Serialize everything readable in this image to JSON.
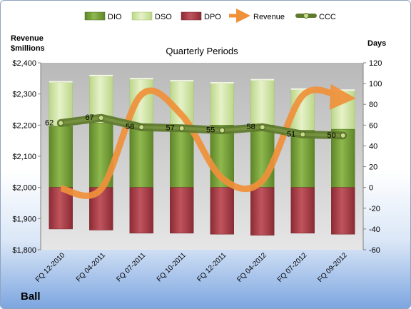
{
  "chart_data": {
    "type": "bar",
    "subtitle": "Quarterly Periods",
    "company": "Ball",
    "left_axis": {
      "label_line1": "Revenue",
      "label_line2": "$millions",
      "min": 1800,
      "max": 2400,
      "step": 100,
      "ticks": [
        "$1,800",
        "$1,900",
        "$2,000",
        "$2,100",
        "$2,200",
        "$2,300",
        "$2,400"
      ]
    },
    "right_axis": {
      "label": "Days",
      "min": -60,
      "max": 120,
      "step": 20,
      "ticks": [
        "-60",
        "-40",
        "-20",
        "0",
        "20",
        "40",
        "60",
        "80",
        "100",
        "120"
      ]
    },
    "categories": [
      "FQ 12-2010",
      "FQ 04-2011",
      "FQ 07-2011",
      "FQ 10-2011",
      "FQ 12-2011",
      "FQ 04-2012",
      "FQ 07-2012",
      "FQ 09-2012"
    ],
    "series": [
      {
        "name": "DIO",
        "axis": "right",
        "kind": "stacked-bar",
        "color": "#7a9e3a",
        "values": [
          59,
          62,
          61,
          60,
          60,
          60,
          55,
          56
        ]
      },
      {
        "name": "DSO",
        "axis": "right",
        "kind": "stacked-bar",
        "color": "#d4e6a8",
        "values": [
          42,
          45,
          43,
          42,
          40,
          43,
          39,
          37
        ]
      },
      {
        "name": "DPO",
        "axis": "right",
        "kind": "bar-negative",
        "color": "#a63d46",
        "values": [
          -40,
          -41,
          -44,
          -44,
          -45,
          -46,
          -44,
          -45
        ]
      },
      {
        "name": "Revenue",
        "axis": "left",
        "kind": "smooth-arrow-line",
        "color": "#f0913a",
        "values": [
          1997,
          1995,
          2298,
          2232,
          2030,
          2022,
          2295,
          2288
        ]
      },
      {
        "name": "CCC",
        "axis": "right",
        "kind": "line-markers",
        "color": "#5f7a2e",
        "values": [
          62,
          67,
          58,
          57,
          55,
          58,
          51,
          50
        ],
        "labels": [
          "62",
          "67",
          "58",
          "57",
          "55",
          "58",
          "51",
          "50"
        ]
      }
    ],
    "legend": {
      "position": "top",
      "entries": [
        "DIO",
        "DSO",
        "DPO",
        "Revenue",
        "CCC"
      ]
    },
    "grid": false
  }
}
